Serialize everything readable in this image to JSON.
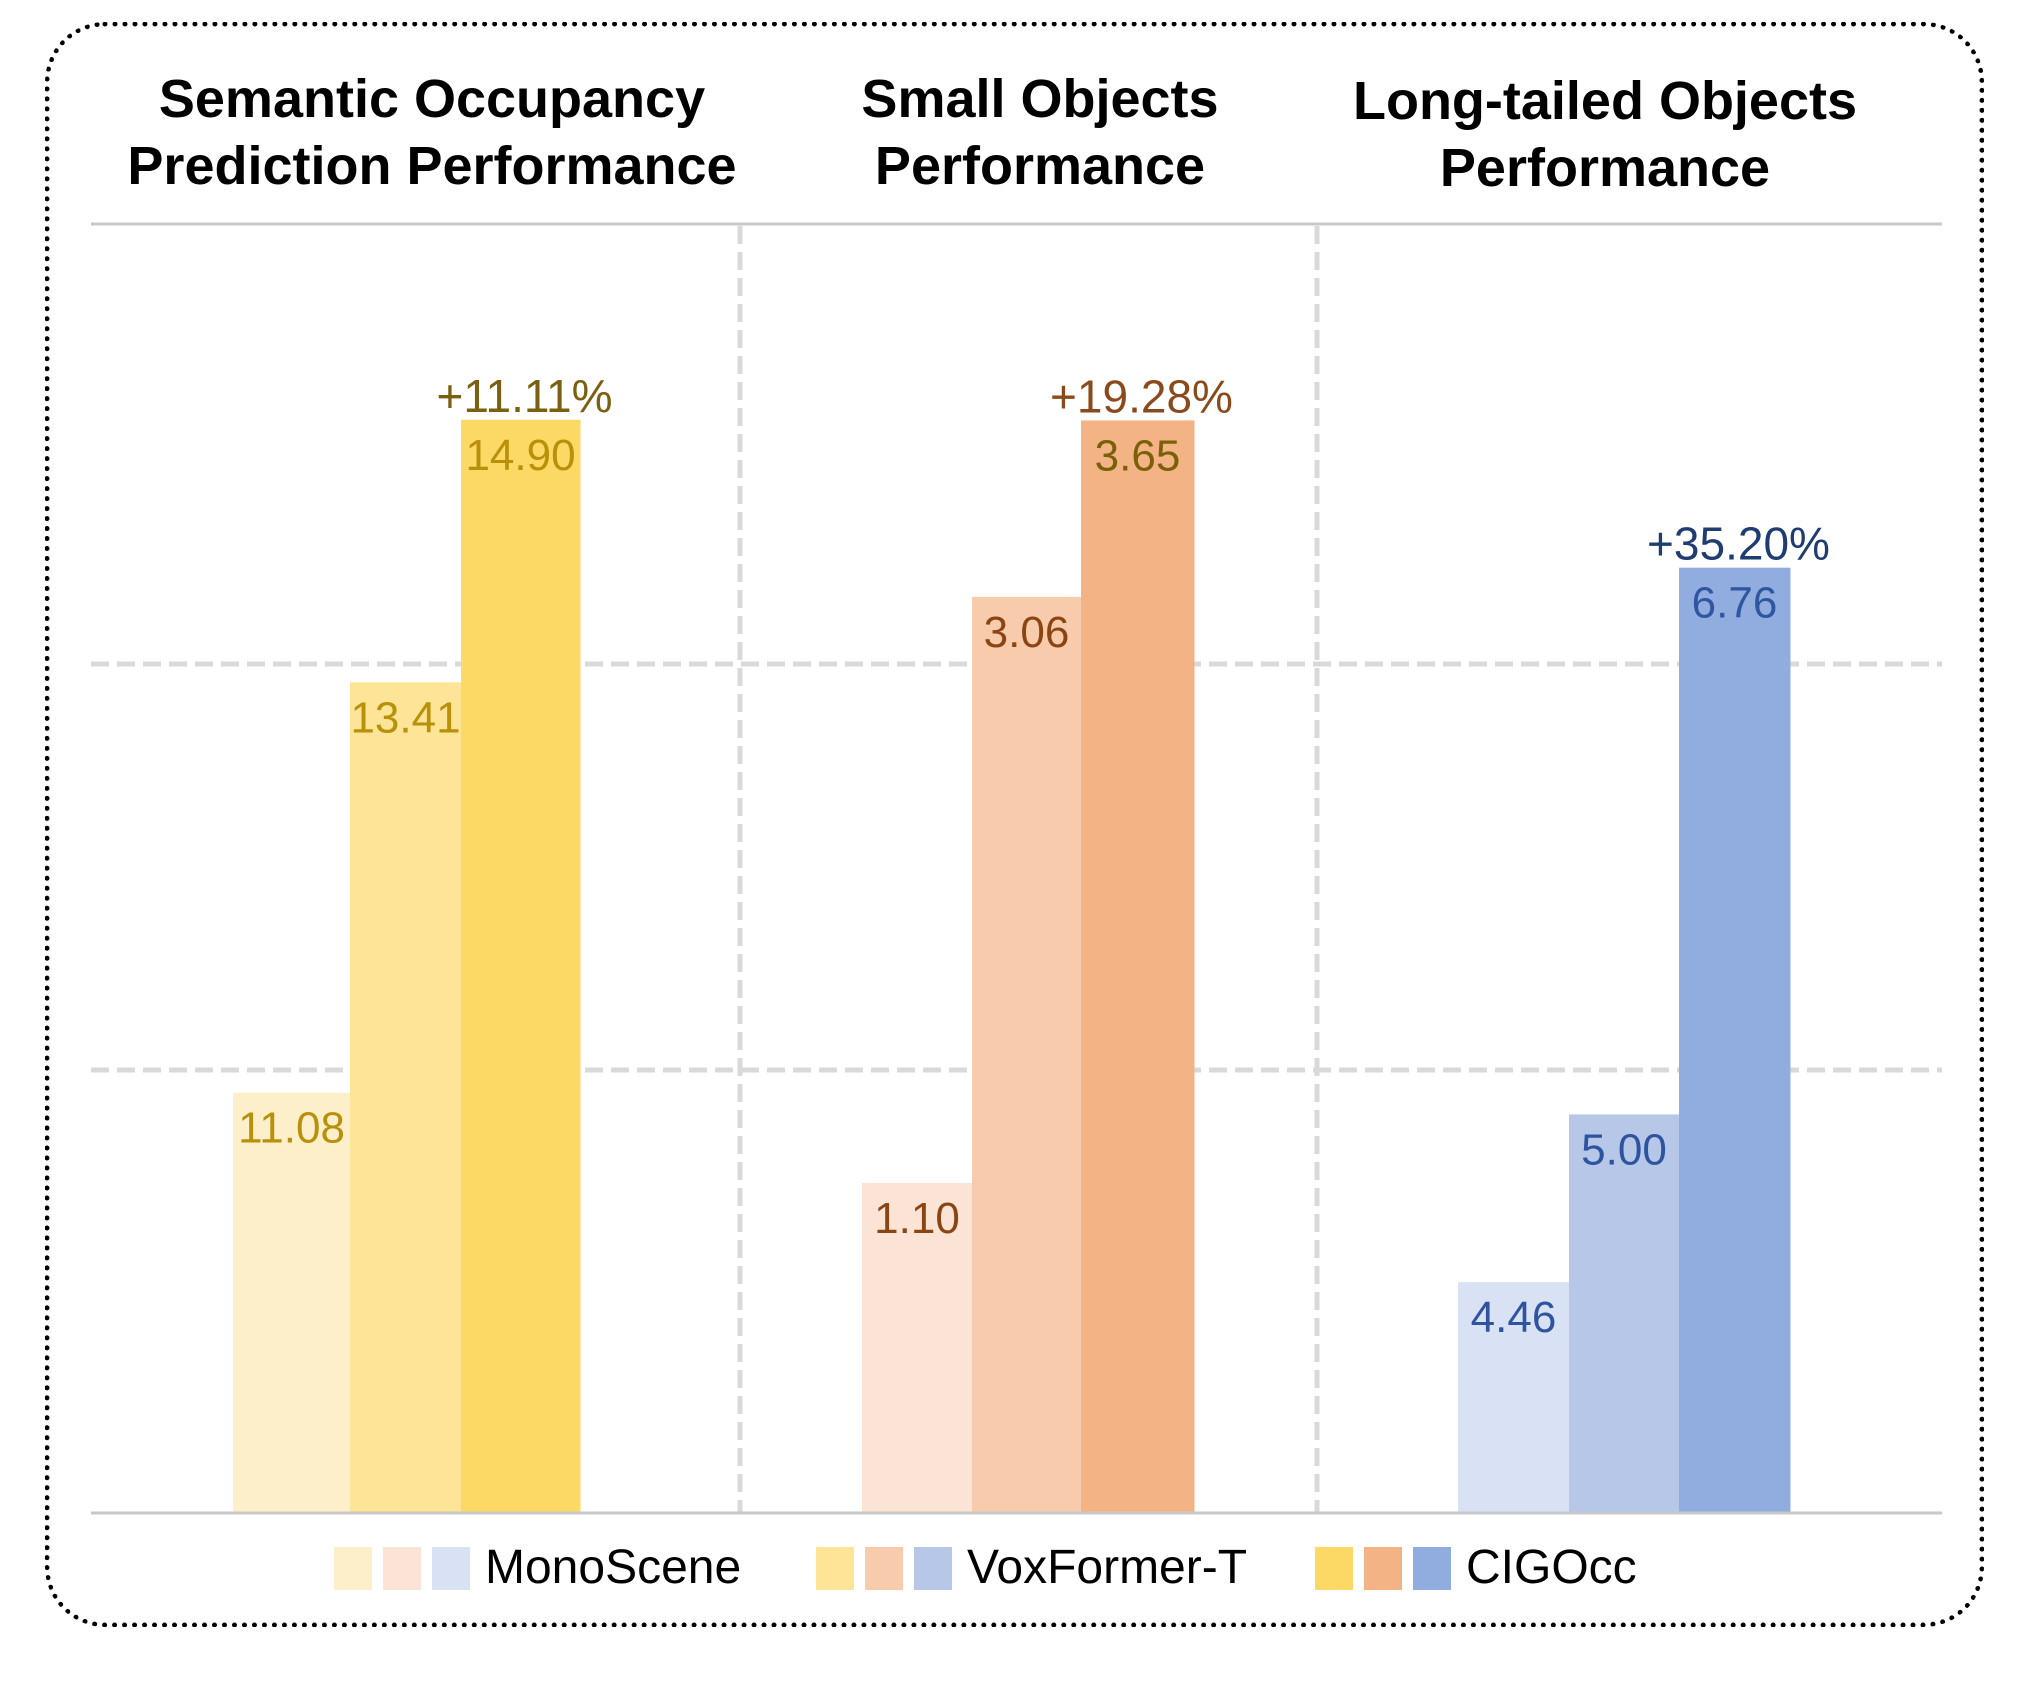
{
  "titles": {
    "semantic": [
      "Semantic Occupancy",
      "Prediction Performance"
    ],
    "small": [
      "Small Objects",
      "Performance"
    ],
    "longtail": [
      "Long-tailed Objects",
      "Performance"
    ]
  },
  "legend": [
    {
      "label": "MonoScene",
      "colors": [
        "#fdefca",
        "#fbe4d5",
        "#d9e2f4"
      ]
    },
    {
      "label": "VoxFormer-T",
      "colors": [
        "#fde496",
        "#f7cbab",
        "#b6c7e8"
      ]
    },
    {
      "label": "CIGOcc",
      "colors": [
        "#fcd964",
        "#f4b384",
        "#91acdf"
      ]
    }
  ],
  "chart_data": {
    "type": "bar",
    "title": "",
    "xlabel": "",
    "ylabel": "",
    "grid": true,
    "legend_position": "bottom",
    "series_names": [
      "MonoScene",
      "VoxFormer-T",
      "CIGOcc"
    ],
    "groups": [
      {
        "name": "Semantic Occupancy Prediction Performance",
        "values": [
          11.08,
          13.41,
          14.9
        ],
        "labels": [
          "11.08",
          "13.41",
          "14.90"
        ],
        "colors": [
          "#fdefca",
          "#fde496",
          "#fcd964"
        ],
        "label_colors": [
          "#b8900a",
          "#b8900a",
          "#b8900a"
        ],
        "improvement": "+11.11%",
        "improvement_color": "#7a6010",
        "ylim": [
          8.7,
          16.0
        ]
      },
      {
        "name": "Small Objects Performance",
        "values": [
          1.1,
          3.06,
          3.65
        ],
        "labels": [
          "1.10",
          "3.06",
          "3.65"
        ],
        "colors": [
          "#fbe4d5",
          "#f7cbab",
          "#f4b384"
        ],
        "label_colors": [
          "#8b4513",
          "#8b4513",
          "#7a6008"
        ],
        "improvement": "+19.28%",
        "improvement_color": "#8b4a1c",
        "ylim": [
          0.0,
          4.3
        ]
      },
      {
        "name": "Long-tailed Objects Performance",
        "values": [
          4.46,
          5.0,
          6.76
        ],
        "labels": [
          "4.46",
          "5.00",
          "6.76"
        ],
        "colors": [
          "#d9e2f4",
          "#b6c7e8",
          "#91acdf"
        ],
        "label_colors": [
          "#2e54a0",
          "#2e54a0",
          "#2f56a0"
        ],
        "improvement": "+35.20%",
        "improvement_color": "#1f3c73",
        "ylim": [
          3.72,
          7.86
        ]
      }
    ]
  }
}
